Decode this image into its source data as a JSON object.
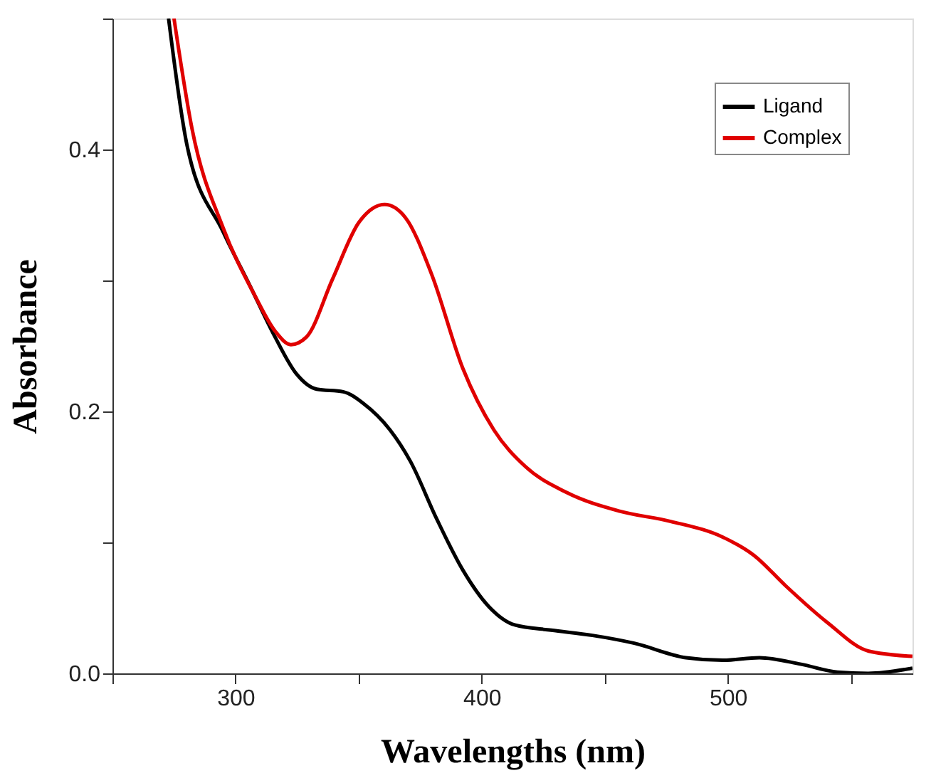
{
  "chart_data": {
    "type": "line",
    "xlabel": "Wavelengths (nm)",
    "ylabel": "Absorbance",
    "xlim": [
      250,
      575
    ],
    "ylim": [
      0,
      0.5
    ],
    "xticks": [
      {
        "value": 250,
        "label": null
      },
      300,
      {
        "value": 350,
        "label": null
      },
      400,
      {
        "value": 450,
        "label": null
      },
      500,
      {
        "value": 550,
        "label": null
      }
    ],
    "yticks": [
      {
        "value": 0,
        "label": "0.0"
      },
      {
        "value": 0.1,
        "label": null
      },
      0.2,
      {
        "value": 0.3,
        "label": null
      },
      0.4,
      {
        "value": 0.5,
        "label": null
      }
    ],
    "grid": false,
    "legend": "top right",
    "marker": "none",
    "line_style": "solid",
    "series": [
      {
        "name": "Ligand",
        "color": "#000000",
        "x": [
          272.8,
          280.2,
          295,
          305.6,
          316,
          324.6,
          333,
          343.7,
          352,
          362.7,
          371,
          381.7,
          392.3,
          402.9,
          413.4,
          428.2,
          445,
          462,
          483,
          498,
          512.8,
          529.7,
          544.5,
          557,
          575
        ],
        "values": [
          0.5,
          0.404,
          0.337,
          0.297,
          0.257,
          0.229,
          0.217,
          0.215,
          0.206,
          0.186,
          0.162,
          0.118,
          0.079,
          0.051,
          0.037,
          0.033,
          0.029,
          0.023,
          0.012,
          0.01,
          0.012,
          0.007,
          0.001,
          0,
          0.004
        ]
      },
      {
        "name": "Complex",
        "color": "#e00000",
        "x": [
          275,
          282.3,
          295,
          307.7,
          316.2,
          322.5,
          328.9,
          339.4,
          350,
          360.6,
          369,
          379.6,
          392.3,
          404.9,
          417.7,
          434.6,
          455.7,
          476.8,
          498,
          510.7,
          523.4,
          540.3,
          557.2,
          575
        ],
        "values": [
          0.5,
          0.416,
          0.34,
          0.289,
          0.261,
          0.251,
          0.257,
          0.301,
          0.344,
          0.358,
          0.348,
          0.305,
          0.233,
          0.186,
          0.158,
          0.138,
          0.124,
          0.116,
          0.104,
          0.09,
          0.067,
          0.039,
          0.017,
          0.013
        ]
      }
    ]
  }
}
